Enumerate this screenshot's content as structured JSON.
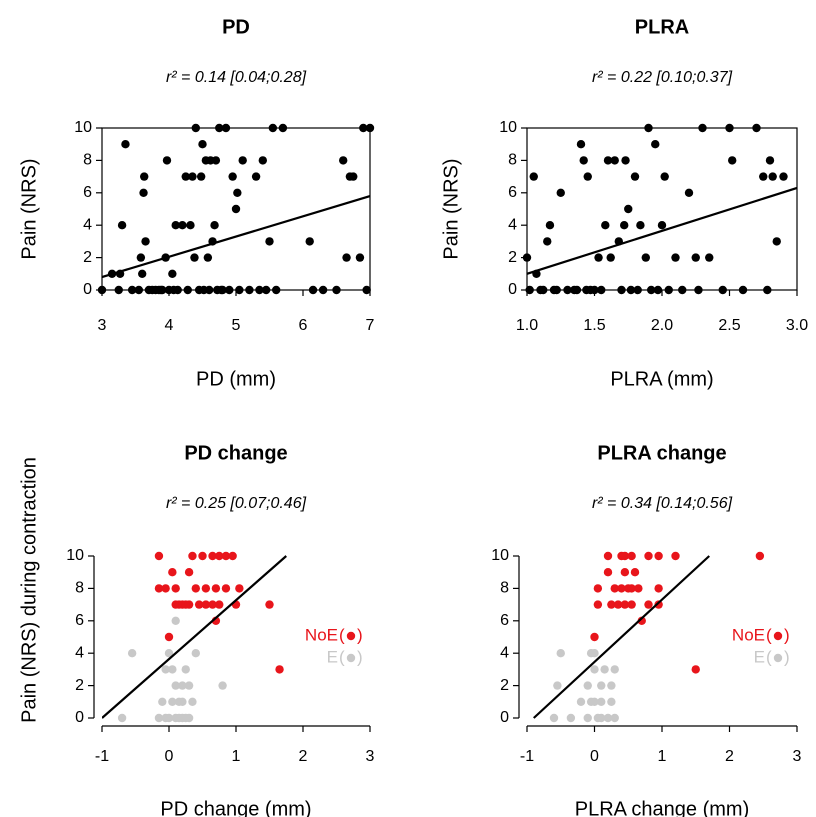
{
  "colors": {
    "black": "#000000",
    "noe": "#e8151b",
    "e": "#c8c8c8"
  },
  "chart_data": [
    {
      "id": "pd",
      "type": "scatter",
      "title": "PD",
      "subtitle": "r² = 0.14 [0.04;0.28]",
      "xlabel": "PD (mm)",
      "ylabel": "Pain (NRS)",
      "xlim": [
        3,
        7
      ],
      "ylim": [
        0,
        10
      ],
      "xticks": [
        "3",
        "4",
        "5",
        "6",
        "7"
      ],
      "yticks": [
        "0",
        "2",
        "4",
        "6",
        "8",
        "10"
      ],
      "regression": {
        "x": [
          3.0,
          7.0
        ],
        "y": [
          0.8,
          5.8
        ]
      },
      "series": [
        {
          "points": [
            [
              3.0,
              0
            ],
            [
              3.15,
              1
            ],
            [
              3.25,
              0
            ],
            [
              3.27,
              1
            ],
            [
              3.3,
              4
            ],
            [
              3.35,
              9
            ],
            [
              3.45,
              0
            ],
            [
              3.55,
              0
            ],
            [
              3.58,
              2
            ],
            [
              3.6,
              1
            ],
            [
              3.62,
              6
            ],
            [
              3.63,
              7
            ],
            [
              3.65,
              3
            ],
            [
              3.7,
              0
            ],
            [
              3.75,
              0
            ],
            [
              3.8,
              0
            ],
            [
              3.85,
              0
            ],
            [
              3.88,
              0
            ],
            [
              3.9,
              0
            ],
            [
              3.95,
              2
            ],
            [
              3.97,
              8
            ],
            [
              4.0,
              0
            ],
            [
              4.05,
              1
            ],
            [
              4.07,
              0
            ],
            [
              4.1,
              4
            ],
            [
              4.13,
              0
            ],
            [
              4.2,
              4
            ],
            [
              4.25,
              7
            ],
            [
              4.28,
              0
            ],
            [
              4.32,
              4
            ],
            [
              4.35,
              7
            ],
            [
              4.38,
              2
            ],
            [
              4.4,
              10
            ],
            [
              4.45,
              0
            ],
            [
              4.48,
              7
            ],
            [
              4.5,
              9
            ],
            [
              4.52,
              0
            ],
            [
              4.55,
              8
            ],
            [
              4.58,
              2
            ],
            [
              4.6,
              0
            ],
            [
              4.62,
              8
            ],
            [
              4.65,
              3
            ],
            [
              4.68,
              4
            ],
            [
              4.7,
              8
            ],
            [
              4.72,
              0
            ],
            [
              4.75,
              10
            ],
            [
              4.78,
              0
            ],
            [
              4.8,
              0
            ],
            [
              4.85,
              10
            ],
            [
              4.9,
              0
            ],
            [
              4.95,
              7
            ],
            [
              5.0,
              5
            ],
            [
              5.02,
              6
            ],
            [
              5.05,
              0
            ],
            [
              5.1,
              8
            ],
            [
              5.2,
              0
            ],
            [
              5.3,
              7
            ],
            [
              5.35,
              0
            ],
            [
              5.4,
              8
            ],
            [
              5.45,
              0
            ],
            [
              5.5,
              3
            ],
            [
              5.55,
              10
            ],
            [
              5.6,
              0
            ],
            [
              5.7,
              10
            ],
            [
              6.1,
              3
            ],
            [
              6.15,
              0
            ],
            [
              6.3,
              0
            ],
            [
              6.5,
              0
            ],
            [
              6.6,
              8
            ],
            [
              6.65,
              2
            ],
            [
              6.7,
              7
            ],
            [
              6.75,
              7
            ],
            [
              6.85,
              2
            ],
            [
              6.9,
              10
            ],
            [
              6.95,
              0
            ],
            [
              7.0,
              10
            ]
          ]
        }
      ]
    },
    {
      "id": "plra",
      "type": "scatter",
      "title": "PLRA",
      "subtitle": "r² = 0.22 [0.10;0.37]",
      "xlabel": "PLRA (mm)",
      "ylabel": "Pain (NRS)",
      "xlim": [
        1.0,
        3.0
      ],
      "ylim": [
        0,
        10
      ],
      "xticks": [
        "1.0",
        "1.5",
        "2.0",
        "2.5",
        "3.0"
      ],
      "yticks": [
        "0",
        "2",
        "4",
        "6",
        "8",
        "10"
      ],
      "regression": {
        "x": [
          1.0,
          3.0
        ],
        "y": [
          1.0,
          6.3
        ]
      },
      "series": [
        {
          "points": [
            [
              1.0,
              2
            ],
            [
              1.02,
              0
            ],
            [
              1.05,
              7
            ],
            [
              1.07,
              1
            ],
            [
              1.1,
              0
            ],
            [
              1.12,
              0
            ],
            [
              1.15,
              3
            ],
            [
              1.17,
              4
            ],
            [
              1.2,
              0
            ],
            [
              1.22,
              0
            ],
            [
              1.25,
              6
            ],
            [
              1.3,
              0
            ],
            [
              1.35,
              0
            ],
            [
              1.37,
              0
            ],
            [
              1.4,
              9
            ],
            [
              1.42,
              8
            ],
            [
              1.44,
              0
            ],
            [
              1.45,
              7
            ],
            [
              1.47,
              0
            ],
            [
              1.5,
              0
            ],
            [
              1.53,
              2
            ],
            [
              1.55,
              0
            ],
            [
              1.58,
              4
            ],
            [
              1.6,
              8
            ],
            [
              1.62,
              2
            ],
            [
              1.65,
              8
            ],
            [
              1.68,
              3
            ],
            [
              1.7,
              0
            ],
            [
              1.72,
              4
            ],
            [
              1.73,
              8
            ],
            [
              1.75,
              5
            ],
            [
              1.77,
              0
            ],
            [
              1.8,
              7
            ],
            [
              1.82,
              0
            ],
            [
              1.84,
              4
            ],
            [
              1.88,
              2
            ],
            [
              1.9,
              10
            ],
            [
              1.92,
              0
            ],
            [
              1.95,
              9
            ],
            [
              1.97,
              0
            ],
            [
              2.0,
              4
            ],
            [
              2.02,
              7
            ],
            [
              2.05,
              0
            ],
            [
              2.1,
              2
            ],
            [
              2.15,
              0
            ],
            [
              2.2,
              6
            ],
            [
              2.25,
              2
            ],
            [
              2.27,
              0
            ],
            [
              2.3,
              10
            ],
            [
              2.35,
              2
            ],
            [
              2.45,
              0
            ],
            [
              2.5,
              10
            ],
            [
              2.52,
              8
            ],
            [
              2.6,
              0
            ],
            [
              2.7,
              10
            ],
            [
              2.75,
              7
            ],
            [
              2.78,
              0
            ],
            [
              2.8,
              8
            ],
            [
              2.82,
              7
            ],
            [
              2.85,
              3
            ],
            [
              2.9,
              7
            ]
          ]
        }
      ]
    },
    {
      "id": "pd-change",
      "type": "scatter",
      "title": "PD change",
      "subtitle": "r² = 0.25 [0.07;0.46]",
      "xlabel": "PD change (mm)",
      "ylabel": "Pain (NRS) during contraction",
      "xlim": [
        -1,
        3
      ],
      "ylim": [
        0,
        10
      ],
      "xticks": [
        "-1",
        "0",
        "1",
        "2",
        "3"
      ],
      "yticks": [
        "0",
        "2",
        "4",
        "6",
        "8",
        "10"
      ],
      "regression": {
        "x": [
          -1.0,
          1.75
        ],
        "y": [
          0.0,
          10.0
        ]
      },
      "legend": {
        "position": "right",
        "entries": [
          {
            "label": "NoE",
            "color": "#e8151b"
          },
          {
            "label": "E",
            "color": "#c8c8c8"
          }
        ]
      },
      "series": [
        {
          "color": "#e8151b",
          "points": [
            [
              -0.15,
              10
            ],
            [
              0.05,
              9
            ],
            [
              0.35,
              10
            ],
            [
              0.5,
              10
            ],
            [
              0.65,
              10
            ],
            [
              0.75,
              10
            ],
            [
              0.85,
              10
            ],
            [
              0.95,
              10
            ],
            [
              -0.15,
              8
            ],
            [
              -0.05,
              8
            ],
            [
              0.1,
              8
            ],
            [
              0.3,
              9
            ],
            [
              0.4,
              8
            ],
            [
              0.55,
              8
            ],
            [
              0.7,
              8
            ],
            [
              0.85,
              8
            ],
            [
              0.3,
              7
            ],
            [
              0.1,
              7
            ],
            [
              0.15,
              7
            ],
            [
              0.2,
              7
            ],
            [
              0.25,
              7
            ],
            [
              0.45,
              7
            ],
            [
              0.55,
              7
            ],
            [
              0.65,
              7
            ],
            [
              0.75,
              7
            ],
            [
              1.0,
              7
            ],
            [
              1.05,
              8
            ],
            [
              1.5,
              7
            ],
            [
              0.7,
              6
            ],
            [
              0.0,
              5
            ],
            [
              1.65,
              3
            ]
          ]
        },
        {
          "color": "#c8c8c8",
          "points": [
            [
              -0.55,
              4
            ],
            [
              -0.7,
              0
            ],
            [
              -0.05,
              0
            ],
            [
              0.0,
              4
            ],
            [
              0.05,
              3
            ],
            [
              0.1,
              6
            ],
            [
              0.1,
              2
            ],
            [
              0.15,
              0
            ],
            [
              0.2,
              1
            ],
            [
              0.25,
              3
            ],
            [
              0.25,
              0
            ],
            [
              0.3,
              2
            ],
            [
              0.3,
              0
            ],
            [
              0.35,
              1
            ],
            [
              0.4,
              4
            ],
            [
              0.15,
              1
            ],
            [
              0.05,
              1
            ],
            [
              -0.1,
              1
            ],
            [
              -0.15,
              0
            ],
            [
              0.0,
              0
            ],
            [
              0.1,
              0
            ],
            [
              0.2,
              0
            ],
            [
              0.8,
              2
            ],
            [
              -0.05,
              3
            ],
            [
              0.2,
              2
            ]
          ]
        }
      ]
    },
    {
      "id": "plra-change",
      "type": "scatter",
      "title": "PLRA change",
      "subtitle": "r² = 0.34 [0.14;0.56]",
      "xlabel": "PLRA change (mm)",
      "ylabel": "",
      "xlim": [
        -1,
        3
      ],
      "ylim": [
        0,
        10
      ],
      "xticks": [
        "-1",
        "0",
        "1",
        "2",
        "3"
      ],
      "yticks": [
        "0",
        "2",
        "4",
        "6",
        "8",
        "10"
      ],
      "regression": {
        "x": [
          -0.9,
          1.7
        ],
        "y": [
          0.0,
          10.0
        ]
      },
      "legend": {
        "position": "right",
        "entries": [
          {
            "label": "NoE",
            "color": "#e8151b"
          },
          {
            "label": "E",
            "color": "#c8c8c8"
          }
        ]
      },
      "series": [
        {
          "color": "#e8151b",
          "points": [
            [
              0.2,
              10
            ],
            [
              0.4,
              10
            ],
            [
              0.45,
              10
            ],
            [
              0.55,
              10
            ],
            [
              0.8,
              10
            ],
            [
              0.95,
              10
            ],
            [
              1.2,
              10
            ],
            [
              2.45,
              10
            ],
            [
              0.2,
              9
            ],
            [
              0.45,
              9
            ],
            [
              0.6,
              9
            ],
            [
              0.05,
              8
            ],
            [
              0.3,
              8
            ],
            [
              0.4,
              8
            ],
            [
              0.5,
              8
            ],
            [
              0.55,
              8
            ],
            [
              0.65,
              8
            ],
            [
              0.95,
              8
            ],
            [
              0.05,
              7
            ],
            [
              0.25,
              7
            ],
            [
              0.35,
              7
            ],
            [
              0.45,
              7
            ],
            [
              0.55,
              7
            ],
            [
              0.8,
              7
            ],
            [
              0.95,
              7
            ],
            [
              0.7,
              6
            ],
            [
              0.0,
              5
            ],
            [
              1.5,
              3
            ]
          ]
        },
        {
          "color": "#c8c8c8",
          "points": [
            [
              -0.5,
              4
            ],
            [
              -0.55,
              2
            ],
            [
              -0.6,
              0
            ],
            [
              -0.35,
              0
            ],
            [
              -0.2,
              1
            ],
            [
              -0.1,
              2
            ],
            [
              -0.1,
              0
            ],
            [
              -0.05,
              4
            ],
            [
              0.0,
              4
            ],
            [
              0.0,
              3
            ],
            [
              0.0,
              1
            ],
            [
              0.05,
              0
            ],
            [
              0.1,
              2
            ],
            [
              0.1,
              1
            ],
            [
              0.15,
              3
            ],
            [
              0.2,
              0
            ],
            [
              0.25,
              1
            ],
            [
              0.25,
              2
            ],
            [
              0.3,
              0
            ],
            [
              0.3,
              3
            ],
            [
              -0.05,
              1
            ],
            [
              0.1,
              0
            ]
          ]
        }
      ]
    }
  ]
}
